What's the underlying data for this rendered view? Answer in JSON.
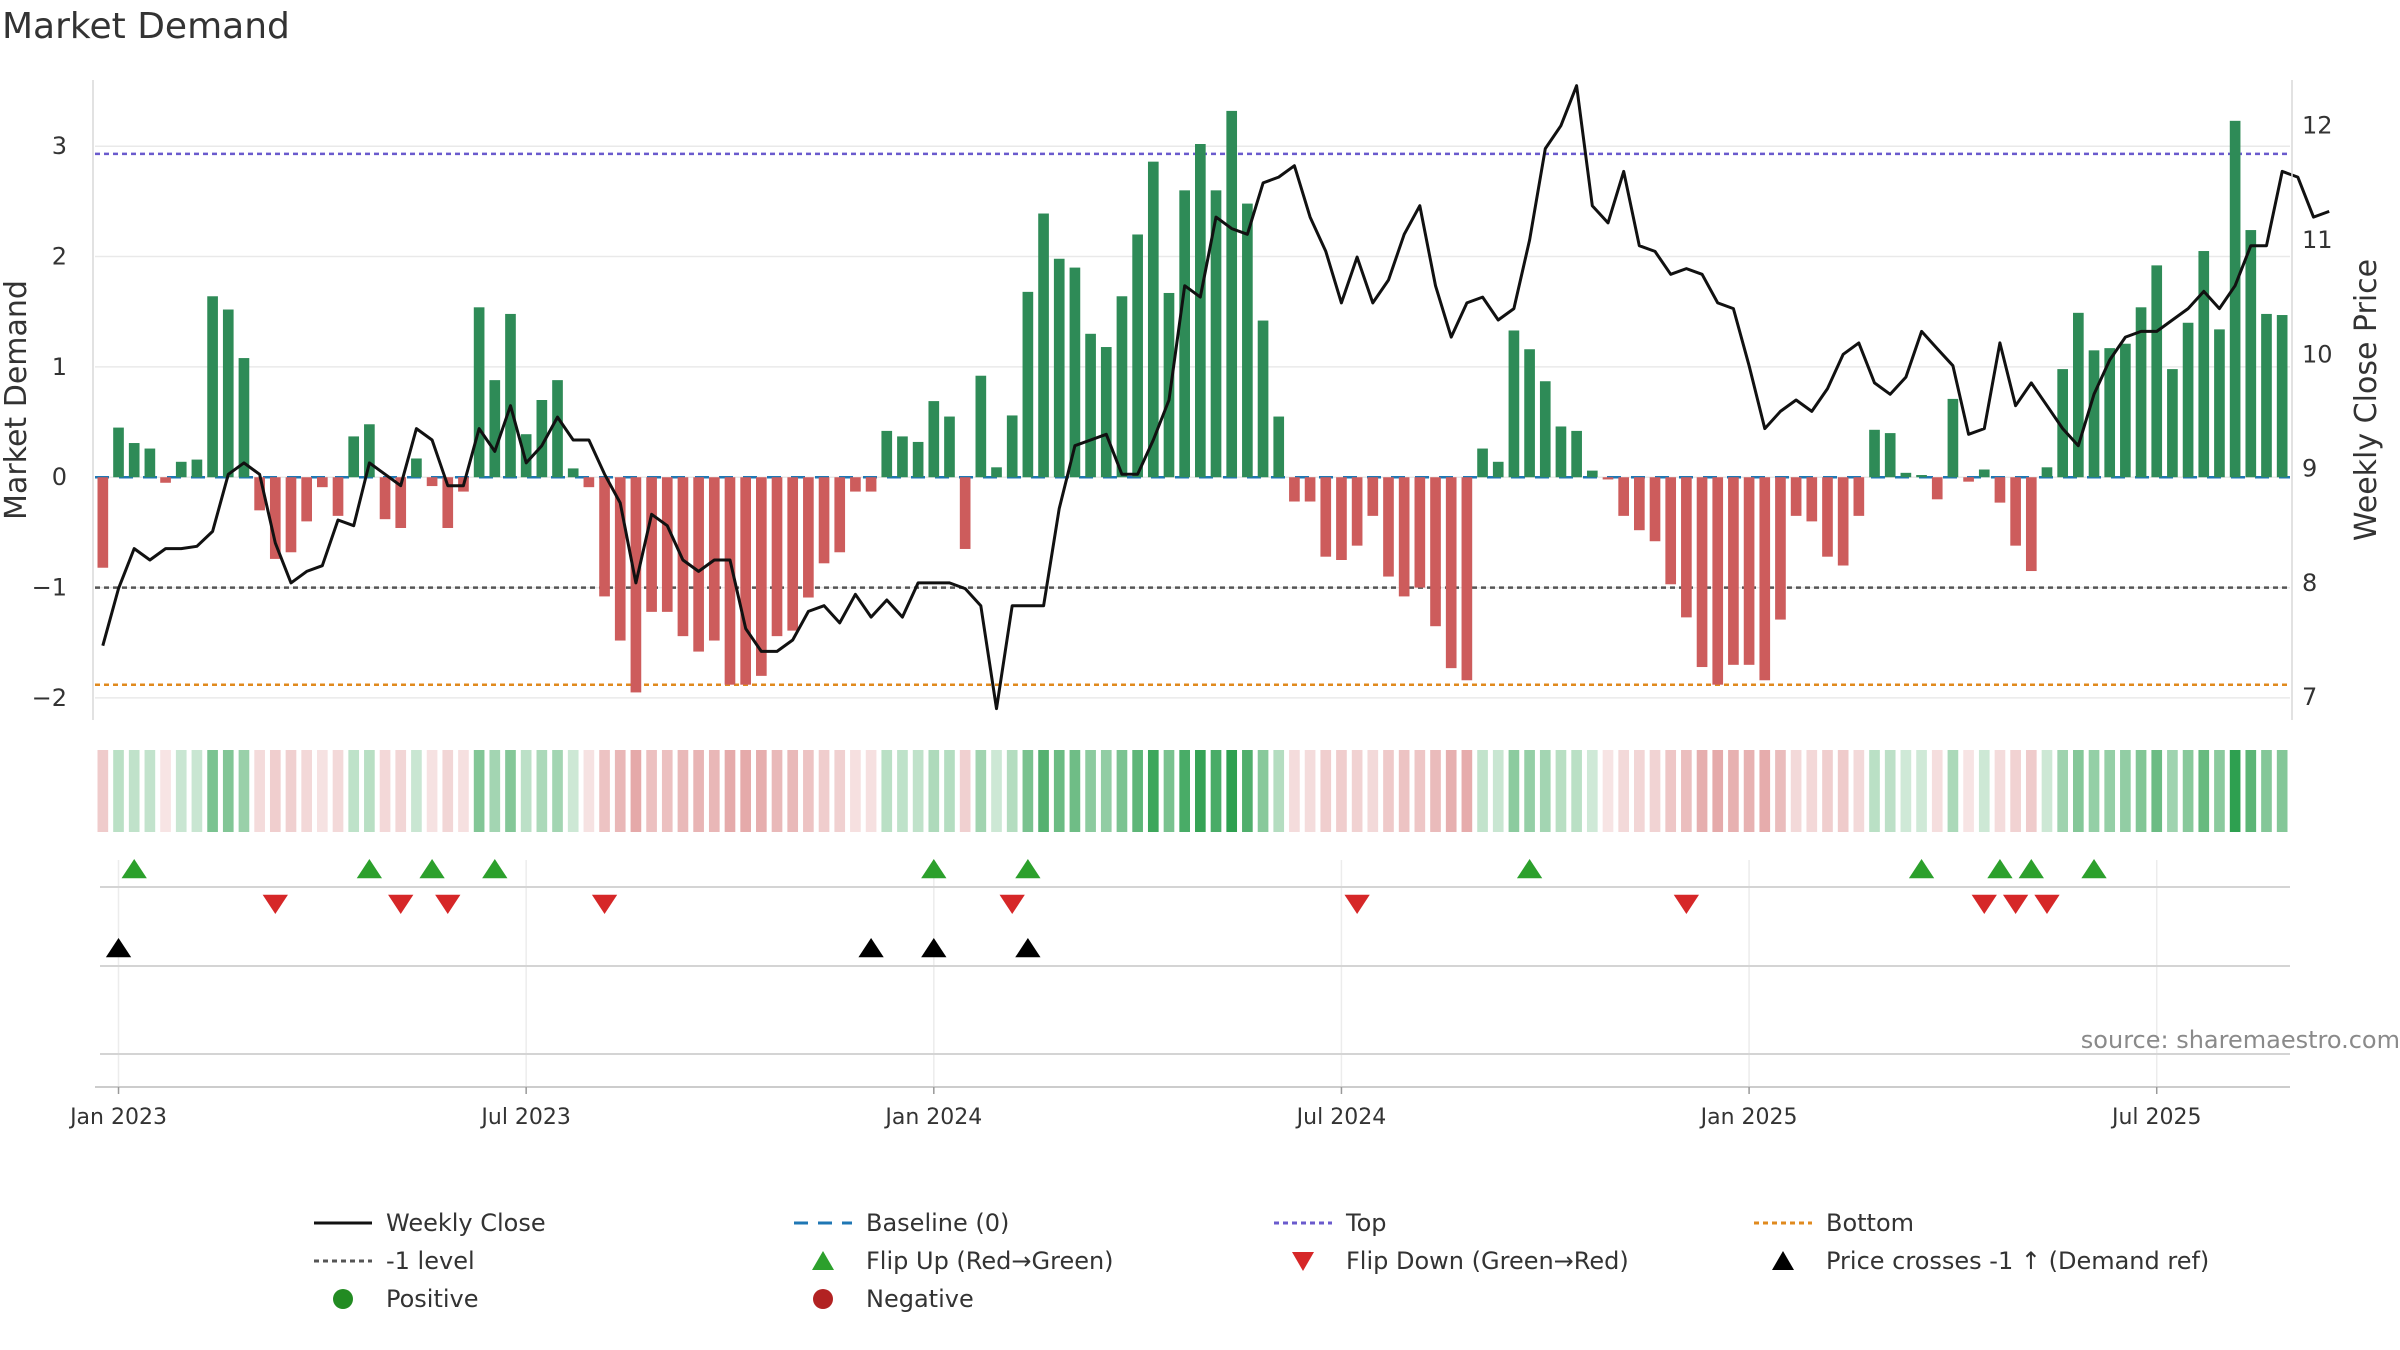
{
  "title": "Market Demand",
  "source": "source: sharemaestro.com",
  "colors": {
    "positive": "#2e8b57",
    "negative": "#cd5c5c",
    "price": "#111111",
    "baseline": "#1f77b4",
    "top": "#6a5acd",
    "minus1": "#555555",
    "bottom": "#e08a1e",
    "flip_up": "#2ca02c",
    "flip_down": "#d62728",
    "cross": "#000000"
  },
  "chart_data": {
    "type": "bar",
    "title": "Market Demand",
    "ylabel_left": "Market Demand",
    "ylabel_right": "Weekly Close Price",
    "ylim_left": [
      -2.2,
      3.6
    ],
    "ylim_right": [
      6.8,
      12.4
    ],
    "yticks_left": [
      "3",
      "2",
      "1",
      "0",
      "−1",
      "−2"
    ],
    "yticks_left_values": [
      3,
      2,
      1,
      0,
      -1,
      -2
    ],
    "yticks_right": [
      "12",
      "11",
      "10",
      "9",
      "8",
      "7"
    ],
    "yticks_right_values": [
      12,
      11,
      10,
      9,
      8,
      7
    ],
    "xticks": [
      "Jan 2023",
      "Jul 2023",
      "Jan 2024",
      "Jul 2024",
      "Jan 2025",
      "Jul 2025"
    ],
    "xticks_week_index": [
      1.5,
      27.5,
      53.5,
      79.5,
      105.5,
      131.5
    ],
    "reference_lines": {
      "baseline": 0,
      "top": 2.93,
      "minus1_level": -1,
      "bottom": -1.88
    },
    "demand": [
      -0.82,
      0.45,
      0.31,
      0.26,
      -0.05,
      0.14,
      0.16,
      1.64,
      1.52,
      1.08,
      -0.3,
      -0.74,
      -0.68,
      -0.4,
      -0.09,
      -0.35,
      0.37,
      0.48,
      -0.38,
      -0.46,
      0.17,
      -0.08,
      -0.46,
      -0.13,
      1.54,
      0.88,
      1.48,
      0.39,
      0.7,
      0.88,
      0.08,
      -0.09,
      -1.08,
      -1.48,
      -1.95,
      -1.22,
      -1.22,
      -1.44,
      -1.58,
      -1.48,
      -1.88,
      -1.88,
      -1.8,
      -1.44,
      -1.39,
      -1.09,
      -0.78,
      -0.68,
      -0.13,
      -0.13,
      0.42,
      0.37,
      0.32,
      0.69,
      0.55,
      -0.65,
      0.92,
      0.09,
      0.56,
      1.68,
      2.39,
      1.98,
      1.9,
      1.3,
      1.18,
      1.64,
      2.2,
      2.86,
      1.67,
      2.6,
      3.02,
      2.6,
      3.32,
      2.48,
      1.42,
      0.55,
      -0.22,
      -0.22,
      -0.72,
      -0.75,
      -0.62,
      -0.35,
      -0.9,
      -1.08,
      -1.0,
      -1.35,
      -1.73,
      -1.84,
      0.26,
      0.14,
      1.33,
      1.16,
      0.87,
      0.46,
      0.42,
      0.06,
      -0.02,
      -0.35,
      -0.48,
      -0.58,
      -0.97,
      -1.27,
      -1.72,
      -1.88,
      -1.7,
      -1.7,
      -1.84,
      -1.29,
      -0.35,
      -0.4,
      -0.72,
      -0.8,
      -0.35,
      0.43,
      0.4,
      0.04,
      0.02,
      -0.2,
      0.71,
      -0.04,
      0.07,
      -0.23,
      -0.62,
      -0.85,
      0.09,
      0.98,
      1.49,
      1.15,
      1.17,
      1.21,
      1.54,
      1.92,
      0.98,
      1.4,
      2.05,
      1.34,
      3.23,
      2.24,
      1.48,
      1.47
    ],
    "weekly_close": [
      7.45,
      7.95,
      8.3,
      8.2,
      8.3,
      8.3,
      8.32,
      8.45,
      8.95,
      9.05,
      8.95,
      8.35,
      8.0,
      8.1,
      8.15,
      8.55,
      8.5,
      9.05,
      8.95,
      8.85,
      9.35,
      9.25,
      8.85,
      8.85,
      9.35,
      9.15,
      9.55,
      9.05,
      9.2,
      9.45,
      9.25,
      9.25,
      8.95,
      8.7,
      8.0,
      8.6,
      8.5,
      8.2,
      8.1,
      8.2,
      8.2,
      7.6,
      7.4,
      7.4,
      7.5,
      7.75,
      7.8,
      7.65,
      7.9,
      7.7,
      7.85,
      7.7,
      8.0,
      8.0,
      8.0,
      7.95,
      7.8,
      6.9,
      7.8,
      7.8,
      7.8,
      8.65,
      9.2,
      9.25,
      9.3,
      8.95,
      8.95,
      9.25,
      9.6,
      10.6,
      10.5,
      11.2,
      11.1,
      11.05,
      11.5,
      11.55,
      11.65,
      11.2,
      10.9,
      10.45,
      10.85,
      10.45,
      10.65,
      11.05,
      11.3,
      10.6,
      10.15,
      10.45,
      10.5,
      10.3,
      10.4,
      11.0,
      11.8,
      12.0,
      12.35,
      11.3,
      11.15,
      11.6,
      10.95,
      10.9,
      10.7,
      10.75,
      10.7,
      10.45,
      10.4,
      9.9,
      9.35,
      9.5,
      9.6,
      9.5,
      9.7,
      10.0,
      10.1,
      9.75,
      9.65,
      9.8,
      10.2,
      10.05,
      9.9,
      9.3,
      9.35,
      10.1,
      9.55,
      9.75,
      9.55,
      9.35,
      9.2,
      9.65,
      9.95,
      10.15,
      10.2,
      10.2,
      10.3,
      10.4,
      10.55,
      10.4,
      10.6,
      10.95,
      10.95,
      11.6,
      11.55,
      11.2,
      11.25
    ],
    "flip_up_weeks": [
      2,
      17,
      21,
      25,
      53,
      59,
      91,
      116,
      121,
      123,
      127
    ],
    "flip_down_weeks": [
      11,
      19,
      22,
      32,
      58,
      80,
      101,
      120,
      122,
      124
    ],
    "price_cross_weeks": [
      1,
      49,
      53,
      59
    ],
    "legend": [
      "Weekly Close",
      "Baseline (0)",
      "Top",
      "Bottom",
      "-1 level",
      "Flip Up (Red→Green)",
      "Flip Down (Green→Red)",
      "Price crosses -1 ↑ (Demand ref)",
      "Positive",
      "Negative"
    ]
  }
}
